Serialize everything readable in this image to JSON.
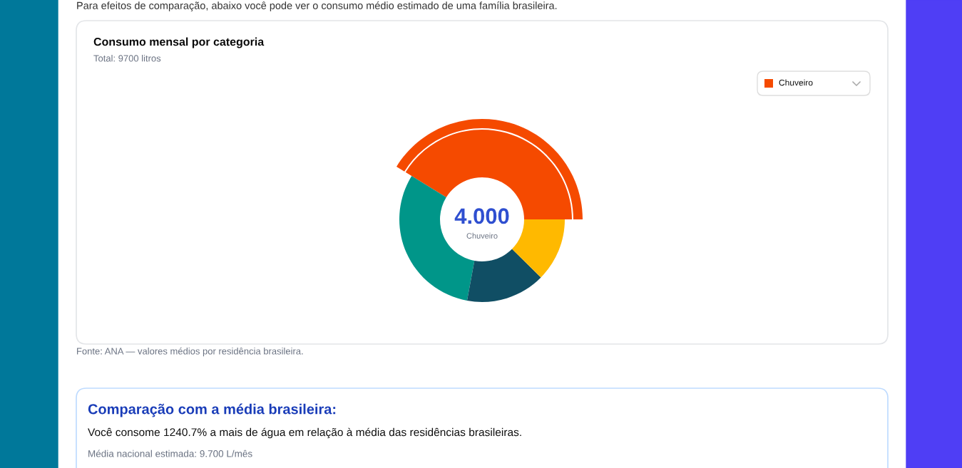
{
  "chart_data": {
    "type": "donut",
    "title": "Consumo mensal por categoria",
    "subtitle": "Total: 9700 litros",
    "categories": [
      "Chuveiro",
      null,
      null,
      null
    ],
    "values": [
      41.2,
      30.9,
      15.5,
      12.4
    ],
    "colors": [
      "#f54a00",
      "#009689",
      "#104e64",
      "#ffb900"
    ],
    "legend": "top right",
    "annotations": [
      "Para efeitos de comparação, abaixo você pode ver o consumo médio estimado de uma família brasileira.",
      "4.000",
      "Fonte: ANA — valores médios por residência brasileira.",
      "Comparação com a média brasileira:",
      "Você consome 1240.7% a mais de água em relação à média das residências brasileiras.",
      "Média nacional estimada: 9.700 L/mês"
    ]
  }
}
